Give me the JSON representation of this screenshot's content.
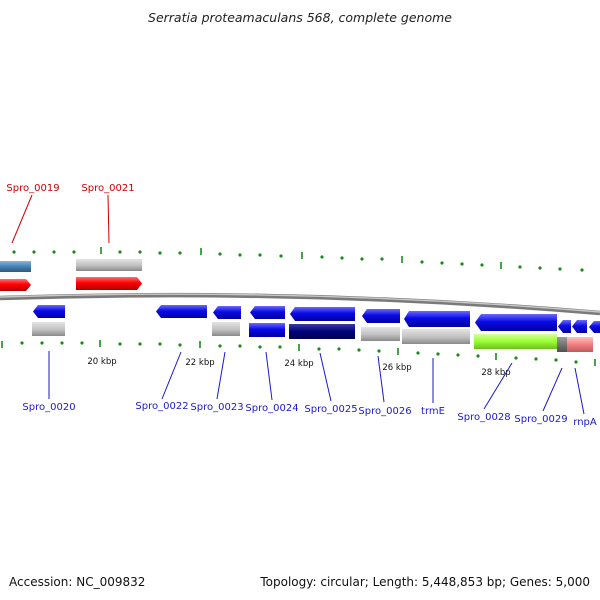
{
  "title": "Serratia proteamaculans 568, complete genome",
  "accession": "Accession: NC_009832",
  "summary": "Topology: circular; Length: 5,448,853 bp; Genes: 5,000",
  "scale_labels": [
    "20 kbp",
    "22 kbp",
    "24 kbp",
    "26 kbp",
    "28 kbp"
  ],
  "gene_labels": {
    "forward": [
      "Spro_0019",
      "Spro_0021"
    ],
    "reverse": [
      "Spro_0020",
      "Spro_0022",
      "Spro_0023",
      "Spro_0024",
      "Spro_0025",
      "Spro_0026",
      "trmE",
      "Spro_0028",
      "Spro_0029",
      "rnpA"
    ]
  },
  "colors": {
    "forward_label": "#cc0000",
    "reverse_label": "#1a1acc",
    "cds": "#0a0ae6",
    "cds_dark": "#00007a",
    "forward_cds": "#ff0000",
    "steel_cds": "#4682b4",
    "rna_grey": "#c0c0c0",
    "lime": "#99ff33",
    "pink": "#f08080",
    "backbone": "#888888",
    "tick": "#1a8c1a"
  }
}
